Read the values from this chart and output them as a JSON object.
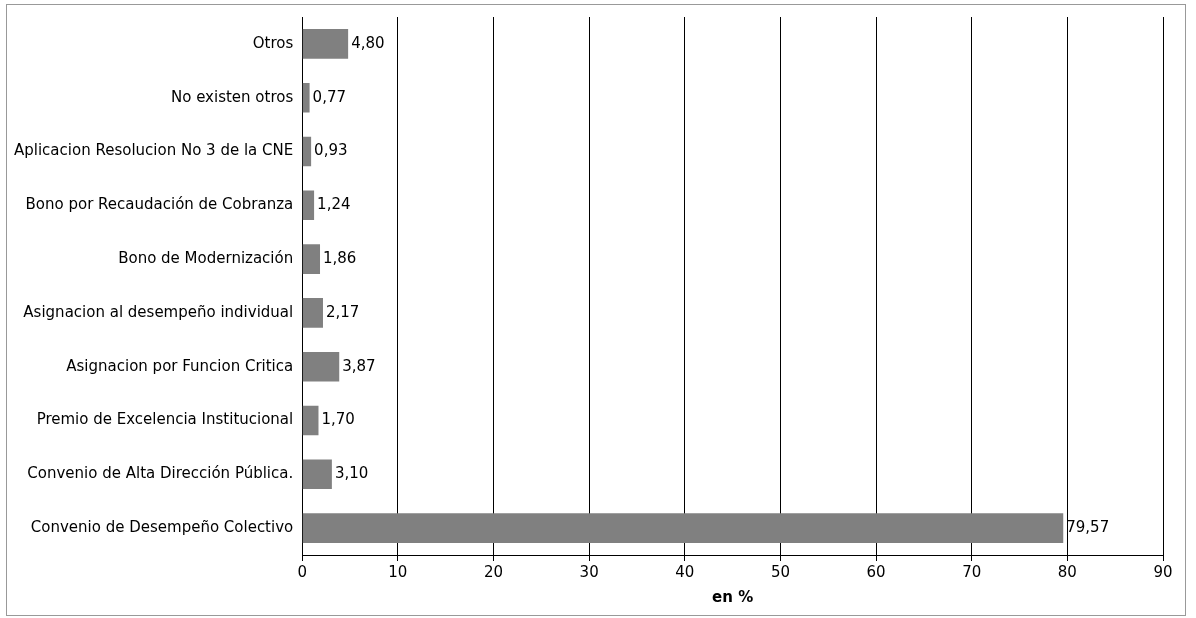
{
  "chart_data": {
    "type": "bar",
    "orientation": "horizontal",
    "xlabel": "en %",
    "categories": [
      "Otros",
      "No existen otros",
      "Aplicacion Resolucion No 3 de la CNE",
      "Bono por Recaudación de Cobranza",
      "Bono de Modernización",
      "Asignacion al desempeño individual",
      "Asignacion por Funcion Critica",
      "Premio de Excelencia Institucional",
      "Convenio de Alta Dirección Pública.",
      "Convenio de Desempeño Colectivo"
    ],
    "values": [
      4.8,
      0.77,
      0.93,
      1.24,
      1.86,
      2.17,
      3.87,
      1.7,
      3.1,
      79.57
    ],
    "value_labels": [
      "4,80",
      "0,77",
      "0,93",
      "1,24",
      "1,86",
      "2,17",
      "3,87",
      "1,70",
      "3,10",
      "79,57"
    ],
    "color": "#808080",
    "xlim": [
      0,
      90
    ],
    "xticks": [
      0,
      10,
      20,
      30,
      40,
      50,
      60,
      70,
      80,
      90
    ],
    "grid": "x",
    "legend": false
  }
}
